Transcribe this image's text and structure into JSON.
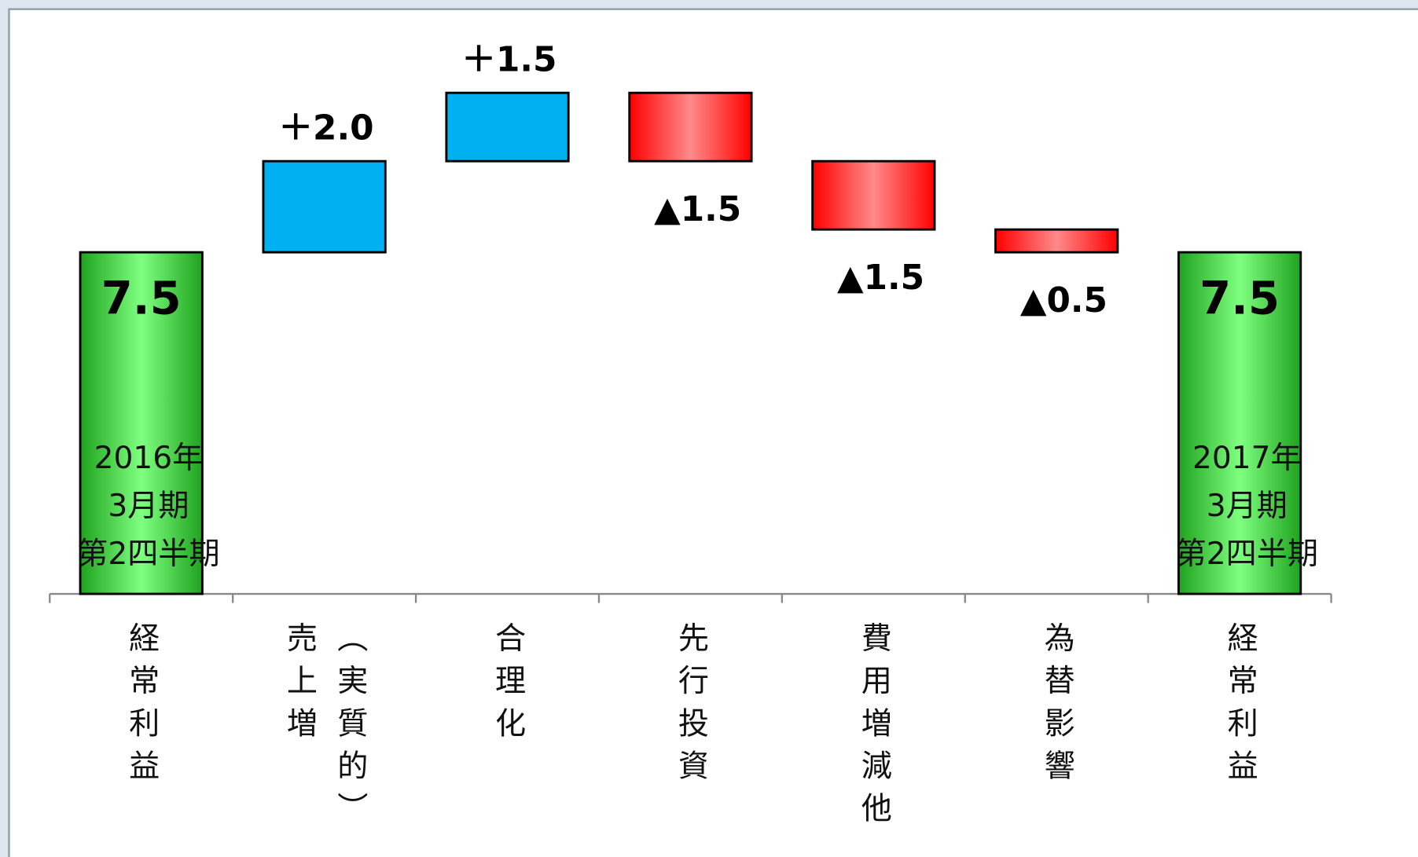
{
  "chart_data": {
    "type": "waterfall",
    "categories": [
      "経常利益",
      "売上増（実質的）",
      "合理化",
      "先行投資",
      "費用増減他",
      "為替影響",
      "経常利益"
    ],
    "measure": [
      "total",
      "relative",
      "relative",
      "relative",
      "relative",
      "relative",
      "total"
    ],
    "values": [
      7.5,
      2.0,
      1.5,
      -1.5,
      -1.5,
      -0.5,
      7.5
    ],
    "value_labels": [
      "7.5",
      "＋2.0",
      "＋1.5",
      "▲1.5",
      "▲1.5",
      "▲0.5",
      "7.5"
    ],
    "bar_notes": [
      {
        "index": 0,
        "lines": [
          "2016年",
          "3月期",
          "第2四半期"
        ]
      },
      {
        "index": 6,
        "lines": [
          "2017年",
          "3月期",
          "第2四半期"
        ]
      }
    ],
    "colors": {
      "total": "#3cc83c",
      "increase": "#00b0f0",
      "decrease": "#ff2020"
    },
    "ylim": [
      0,
      12
    ]
  }
}
